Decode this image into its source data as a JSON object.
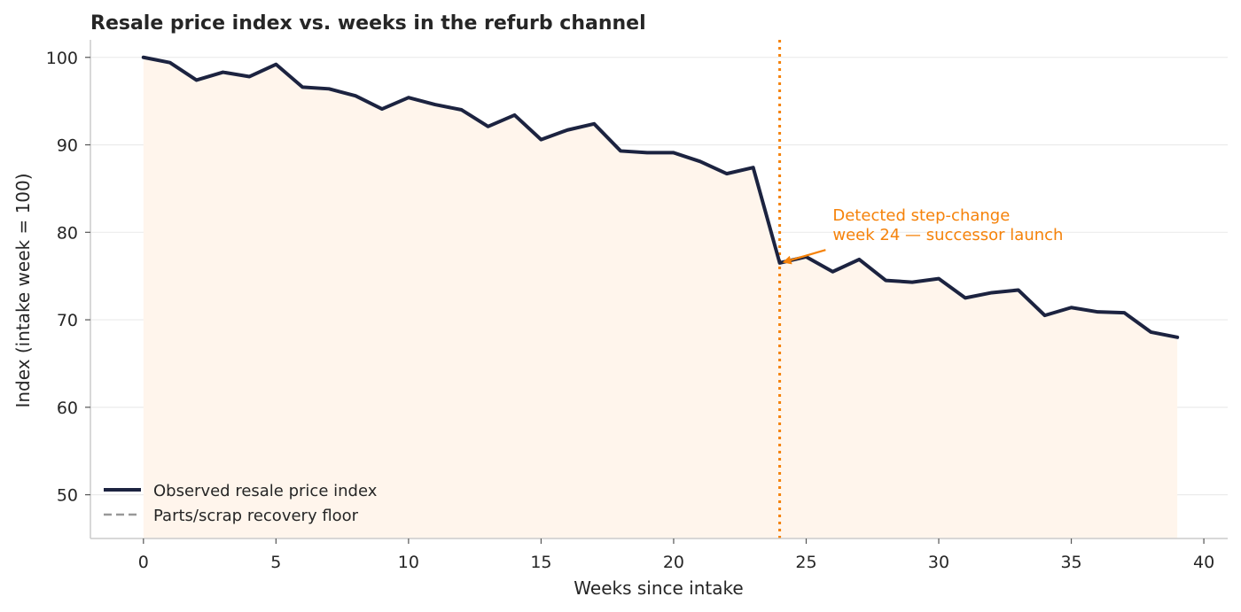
{
  "chart_data": {
    "type": "line",
    "title": "Resale price index vs. weeks in the refurb channel",
    "xlabel": "Weeks since intake",
    "ylabel": "Index (intake week = 100)",
    "xlim": [
      -2,
      40.9
    ],
    "ylim": [
      45,
      102
    ],
    "xticks": [
      0,
      5,
      10,
      15,
      20,
      25,
      30,
      35,
      40
    ],
    "yticks": [
      50,
      60,
      70,
      80,
      90,
      100
    ],
    "grid": "horizontal",
    "legend_placement": "lower-left",
    "series": [
      {
        "name": "Observed resale price index",
        "color": "#1c2340",
        "style": "solid",
        "fill": "#fff5ec",
        "x": [
          0,
          1,
          2,
          3,
          4,
          5,
          6,
          7,
          8,
          9,
          10,
          11,
          12,
          13,
          14,
          15,
          16,
          17,
          18,
          19,
          20,
          21,
          22,
          23,
          24,
          25,
          26,
          27,
          28,
          29,
          30,
          31,
          32,
          33,
          34,
          35,
          36,
          37,
          38,
          39
        ],
        "y": [
          100.0,
          99.4,
          97.4,
          98.3,
          97.8,
          99.2,
          96.6,
          96.4,
          95.6,
          94.1,
          95.4,
          94.6,
          94.0,
          92.1,
          93.4,
          90.6,
          91.7,
          92.4,
          89.3,
          89.1,
          89.1,
          88.1,
          86.7,
          87.4,
          76.5,
          77.2,
          75.5,
          76.9,
          74.5,
          74.3,
          74.7,
          72.5,
          73.1,
          73.4,
          70.5,
          71.4,
          70.9,
          70.8,
          68.6,
          68.0
        ]
      },
      {
        "name": "Parts/scrap recovery floor",
        "color": "#999999",
        "style": "dashed",
        "x": [],
        "y": []
      }
    ],
    "annotations": [
      {
        "line1": "Detected step-change",
        "line2": "week 24 — successor launch",
        "x": 24,
        "y": 76.5,
        "text_x": 26,
        "text_y": 79.1,
        "color": "#f5820a"
      }
    ],
    "reference_lines": [
      {
        "axis": "x",
        "value": 24,
        "color": "#f5820a",
        "style": "dotted"
      }
    ]
  }
}
